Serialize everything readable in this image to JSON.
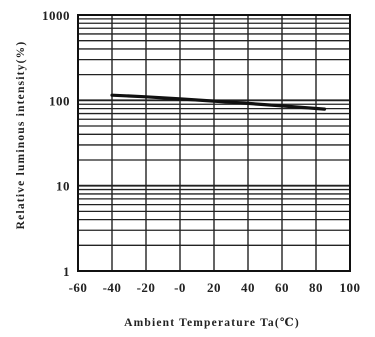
{
  "chart_data": {
    "type": "line",
    "title": "",
    "xlabel": "Ambient Temperature Ta(℃)",
    "ylabel": "Relative luminous intensity(%)",
    "x_ticks": [
      -60,
      -40,
      -20,
      0,
      20,
      40,
      60,
      80,
      100
    ],
    "x_tick_labels": [
      "-60",
      "-40",
      "-20",
      "-0",
      "20",
      "40",
      "60",
      "80",
      "100"
    ],
    "y_ticks": [
      1,
      10,
      100,
      1000
    ],
    "y_tick_labels": [
      "1",
      "10",
      "100",
      "1000"
    ],
    "xlim": [
      -60,
      100
    ],
    "ylim": [
      1,
      1000
    ],
    "y_scale": "log",
    "grid": true,
    "series": [
      {
        "x": [
          -40,
          -20,
          0,
          20,
          40,
          60,
          85
        ],
        "y": [
          115,
          110,
          104,
          98,
          92,
          86,
          79
        ]
      }
    ],
    "colors": {
      "line": "#111111",
      "grid": "#222222",
      "axis": "#111111"
    }
  }
}
